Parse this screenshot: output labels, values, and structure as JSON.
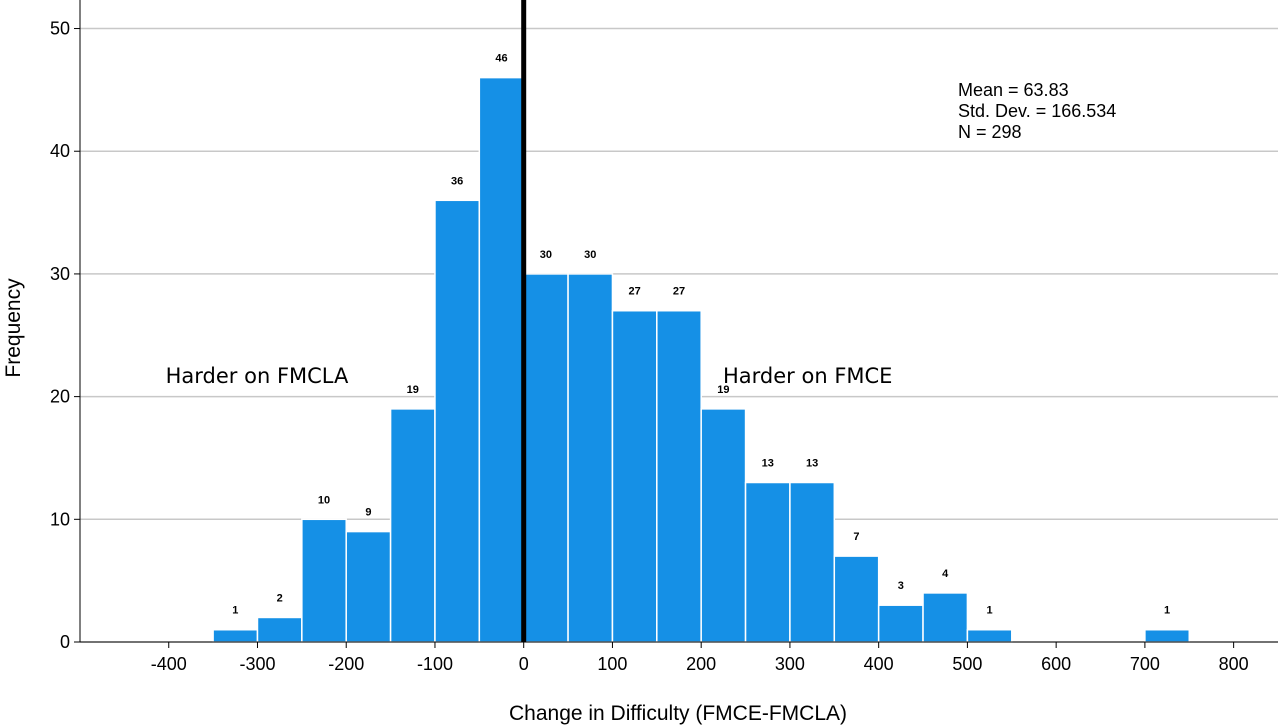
{
  "chart_data": {
    "type": "bar",
    "subtype": "histogram",
    "xlabel": "Change in Difficulty (FMCE-FMCLA)",
    "ylabel": "Frequency",
    "xlim": [
      -500,
      850
    ],
    "ylim": [
      0,
      52
    ],
    "x_ticks": [
      "-400",
      "-300",
      "-200",
      "-100",
      "0",
      "100",
      "200",
      "300",
      "400",
      "500",
      "600",
      "700",
      "800"
    ],
    "y_ticks": [
      "0",
      "10",
      "20",
      "30",
      "40",
      "50"
    ],
    "grid": "horizontal",
    "bin_width": 50,
    "bins": [
      {
        "start": -350,
        "end": -300,
        "value": 1,
        "label": "1"
      },
      {
        "start": -300,
        "end": -250,
        "value": 2,
        "label": "2"
      },
      {
        "start": -250,
        "end": -200,
        "value": 10,
        "label": "10"
      },
      {
        "start": -200,
        "end": -150,
        "value": 9,
        "label": "9"
      },
      {
        "start": -150,
        "end": -100,
        "value": 19,
        "label": "19"
      },
      {
        "start": -100,
        "end": -50,
        "value": 36,
        "label": "36"
      },
      {
        "start": -50,
        "end": 0,
        "value": 46,
        "label": "46"
      },
      {
        "start": 0,
        "end": 50,
        "value": 30,
        "label": "30"
      },
      {
        "start": 50,
        "end": 100,
        "value": 30,
        "label": "30"
      },
      {
        "start": 100,
        "end": 150,
        "value": 27,
        "label": "27"
      },
      {
        "start": 150,
        "end": 200,
        "value": 27,
        "label": "27"
      },
      {
        "start": 200,
        "end": 250,
        "value": 19,
        "label": "19"
      },
      {
        "start": 250,
        "end": 300,
        "value": 13,
        "label": "13"
      },
      {
        "start": 300,
        "end": 350,
        "value": 13,
        "label": "13"
      },
      {
        "start": 350,
        "end": 400,
        "value": 7,
        "label": "7"
      },
      {
        "start": 400,
        "end": 450,
        "value": 3,
        "label": "3"
      },
      {
        "start": 450,
        "end": 500,
        "value": 4,
        "label": "4"
      },
      {
        "start": 500,
        "end": 550,
        "value": 1,
        "label": "1"
      },
      {
        "start": 700,
        "end": 750,
        "value": 1,
        "label": "1"
      }
    ],
    "reference_line": {
      "x": 0
    },
    "stats": [
      "Mean = 63.83",
      "Std. Dev. = 166.534",
      "N = 298"
    ],
    "annotations": [
      {
        "text": "Harder on FMCLA",
        "x": -300,
        "y": 21.7
      },
      {
        "text": "Harder on FMCE",
        "x": 200,
        "y": 21.7
      }
    ],
    "colors": {
      "bar": "#1590e6",
      "bar_edge": "#ffffff",
      "grid": "#c8c8c8",
      "reference_line": "#000000"
    }
  }
}
